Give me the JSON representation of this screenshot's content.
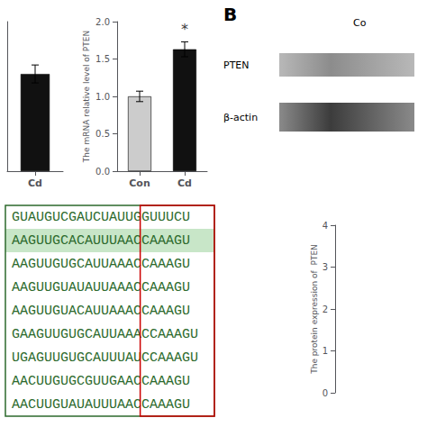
{
  "chart_data": [
    {
      "type": "bar",
      "categories": [
        "Cd"
      ],
      "values": [
        1.3
      ],
      "errors": [
        0.12
      ],
      "colors": [
        "#111111"
      ],
      "ylim": [
        0,
        2.0
      ],
      "grid": false,
      "tick_labels": "x"
    },
    {
      "type": "bar",
      "categories": [
        "Con",
        "Cd"
      ],
      "values": [
        1.0,
        1.63
      ],
      "errors": [
        0.07,
        0.1
      ],
      "colors": [
        "#cccccc",
        "#111111"
      ],
      "ylim": [
        0.0,
        2.0
      ],
      "yticks": [
        {
          "value": 0.0,
          "label": "0.0"
        },
        {
          "value": 0.5,
          "label": "0.5"
        },
        {
          "value": 1.0,
          "label": "1.0"
        },
        {
          "value": 1.5,
          "label": "1.5"
        },
        {
          "value": 2.0,
          "label": "2.0"
        }
      ],
      "ylabel": "The mRNA relative level of PTEN",
      "grid": false,
      "annotations": [
        {
          "text": "*",
          "x": "Cd",
          "y": 1.8
        }
      ]
    },
    {
      "type": "table",
      "rows": [
        "GUAUGUCGAUCUAUUGGUUUCU",
        "AAGUUGCACAUUUAACCAAAGU",
        "AAGUUGUGCAUUAAACCAAAGU",
        "AAGUUGUAUAUUAAACCAAAGU",
        "AAGUUGUACAUUAAACCAAAGU",
        "GAAGUUGUGCAUUAAACCAAAGU",
        "UGAGUUGUGCAUUUAUCCAAAGU",
        "AACUUGUGCGUUGAACCAAAGU",
        "AACUUGUAUAUUUAACCAAAGU"
      ],
      "highlight": [
        false,
        true,
        false,
        false,
        false,
        false,
        false,
        false,
        false
      ],
      "color": "#2d6a2d",
      "highlight_color": "#c8e6c8",
      "box_color": "#cc0000"
    },
    {
      "type": "western_blot",
      "title": "B",
      "column_label": "Co",
      "row_labels": [
        "PTEN",
        "β-actin"
      ]
    },
    {
      "type": "bar",
      "categories": [],
      "values": [],
      "ylim": [
        0,
        4
      ],
      "yticks": [
        0,
        1,
        2,
        3,
        4
      ],
      "ylabel": "The protein expression of  PTEN",
      "grid": false,
      "tick_labels": "y"
    }
  ]
}
